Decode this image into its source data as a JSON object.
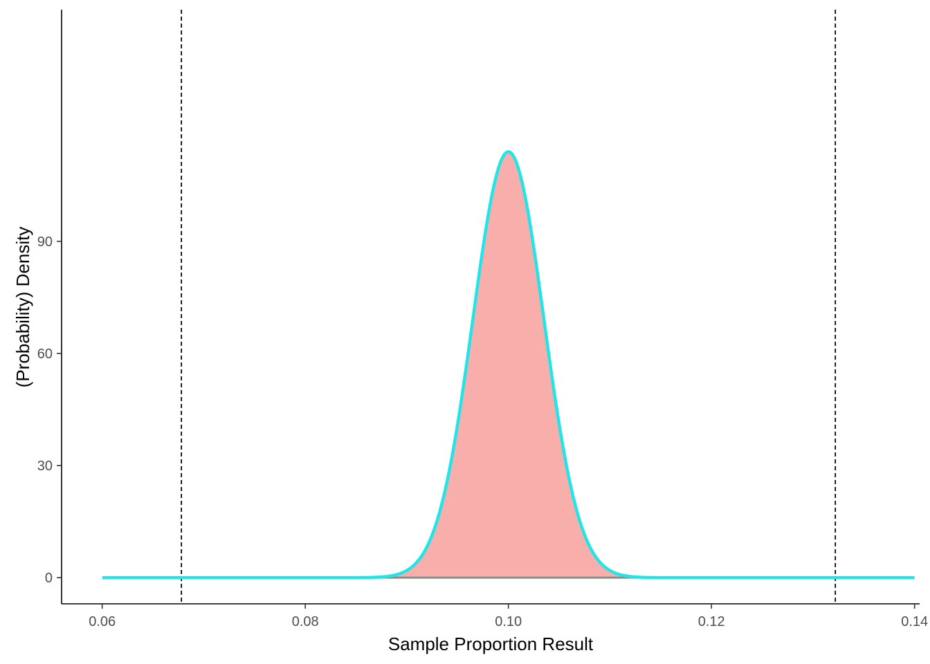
{
  "chart_data": {
    "type": "area",
    "title": "",
    "xlabel": "Sample Proportion Result",
    "ylabel": "(Probability) Density",
    "xlim": [
      0.056,
      0.1405
    ],
    "ylim": [
      -7,
      152
    ],
    "x_ticks": [
      0.06,
      0.08,
      0.1,
      0.12,
      0.14
    ],
    "x_tick_labels": [
      "0.06",
      "0.08",
      "0.10",
      "0.12",
      "0.14"
    ],
    "y_ticks": [
      0,
      30,
      60,
      90
    ],
    "y_tick_labels": [
      "0",
      "30",
      "60",
      "90"
    ],
    "grid": false,
    "legend": "none",
    "curve": {
      "distribution": "normal",
      "mean": 0.1,
      "sd": 0.0035,
      "peak_density": 114,
      "x_range": [
        0.06,
        0.14
      ],
      "line_color": "#22e5e8",
      "shaded_range": [
        0.086,
        0.114
      ],
      "fill_color": "#f8afac"
    },
    "vlines": [
      {
        "x": 0.0678,
        "style": "dashed",
        "color": "#000000"
      },
      {
        "x": 0.1322,
        "style": "dashed",
        "color": "#000000"
      }
    ]
  }
}
